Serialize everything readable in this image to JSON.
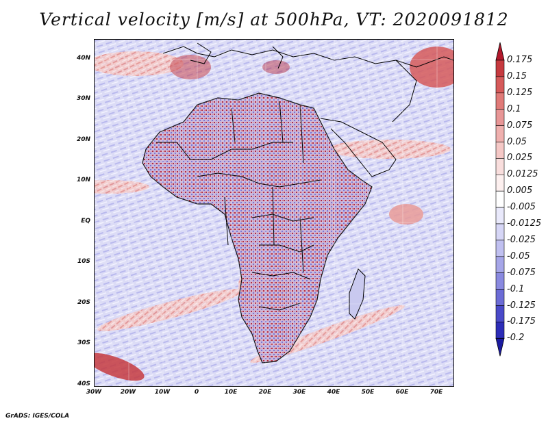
{
  "title": "Vertical velocity [m/s] at 500hPa, VT: 2020091812",
  "footer": "GrADS: IGES/COLA",
  "map": {
    "region": "Africa",
    "variable": "Vertical velocity",
    "units": "m/s",
    "level": "500hPa",
    "valid_time": "2020091812",
    "lat_range": [
      -40,
      45
    ],
    "lon_range": [
      -30,
      75
    ],
    "lat_labels": [
      {
        "value": 40,
        "text": "40N"
      },
      {
        "value": 30,
        "text": "30N"
      },
      {
        "value": 20,
        "text": "20N"
      },
      {
        "value": 10,
        "text": "10N"
      },
      {
        "value": 0,
        "text": "EQ"
      },
      {
        "value": -10,
        "text": "10S"
      },
      {
        "value": -20,
        "text": "20S"
      },
      {
        "value": -30,
        "text": "30S"
      },
      {
        "value": -40,
        "text": "40S"
      }
    ],
    "lon_labels": [
      {
        "value": -30,
        "text": "30W"
      },
      {
        "value": -20,
        "text": "20W"
      },
      {
        "value": -10,
        "text": "10W"
      },
      {
        "value": 0,
        "text": "0"
      },
      {
        "value": 10,
        "text": "10E"
      },
      {
        "value": 20,
        "text": "20E"
      },
      {
        "value": 30,
        "text": "30E"
      },
      {
        "value": 40,
        "text": "40E"
      },
      {
        "value": 50,
        "text": "50E"
      },
      {
        "value": 60,
        "text": "60E"
      },
      {
        "value": 70,
        "text": "70E"
      }
    ]
  },
  "legend": {
    "labels": [
      "0.175",
      "0.15",
      "0.125",
      "0.1",
      "0.075",
      "0.05",
      "0.025",
      "0.0125",
      "0.005",
      "-0.005",
      "-0.0125",
      "-0.025",
      "-0.05",
      "-0.075",
      "-0.1",
      "-0.125",
      "-0.175",
      "-0.2"
    ],
    "colors": [
      "#b2182b",
      "#c63a3f",
      "#d65a5a",
      "#e07a78",
      "#e89696",
      "#efb0ae",
      "#f5c8c6",
      "#f9dedd",
      "#fdf0ef",
      "#ffffff",
      "#e9e9fb",
      "#d6d6f6",
      "#c0c0f0",
      "#a6a6e8",
      "#8a8ae0",
      "#6c6cd6",
      "#4a4ac9",
      "#2d2db8",
      "#1a1aa0"
    ]
  }
}
